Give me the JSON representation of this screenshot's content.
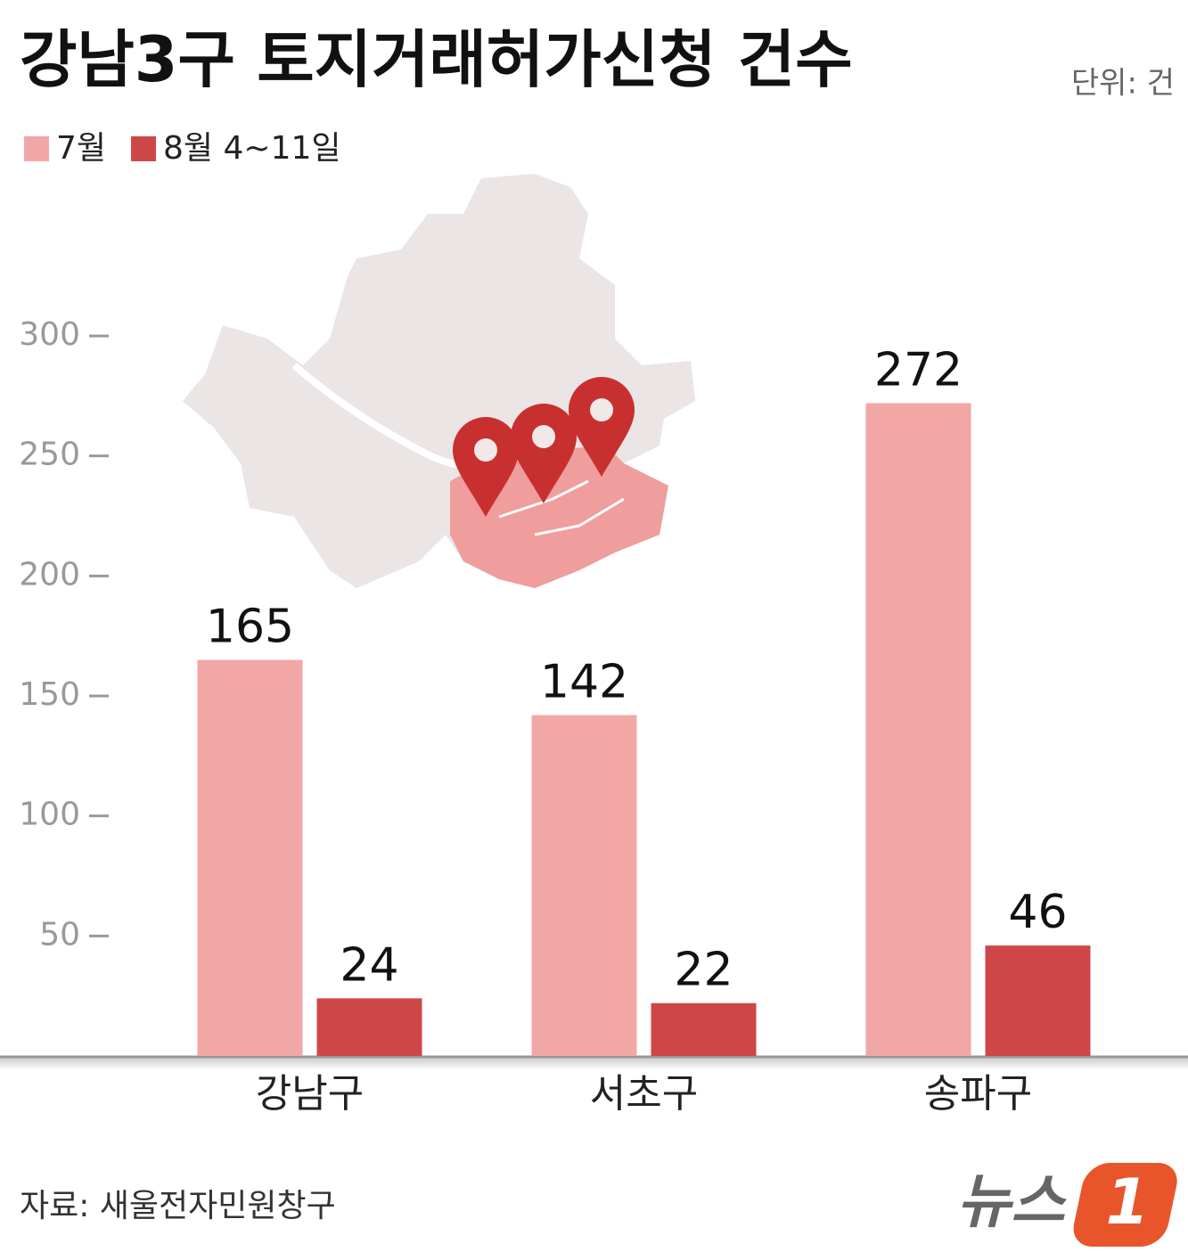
{
  "chart_data": {
    "type": "bar",
    "title": "강남3구 토지거래허가신청 건수",
    "unit": "단위: 건",
    "source": "자료: 새울전자민원창구",
    "logo": {
      "text": "뉴스",
      "mark": "1"
    },
    "categories": [
      "강남구",
      "서초구",
      "송파구"
    ],
    "series": [
      {
        "name": "7월",
        "color": "#f2a7a7",
        "values": [
          165,
          142,
          272
        ]
      },
      {
        "name": "8월 4~11일",
        "color": "#cf4649",
        "values": [
          24,
          22,
          46
        ]
      }
    ],
    "ylim": [
      0,
      300
    ],
    "yticks": [
      50,
      100,
      150,
      200,
      250,
      300
    ],
    "grid": false
  }
}
